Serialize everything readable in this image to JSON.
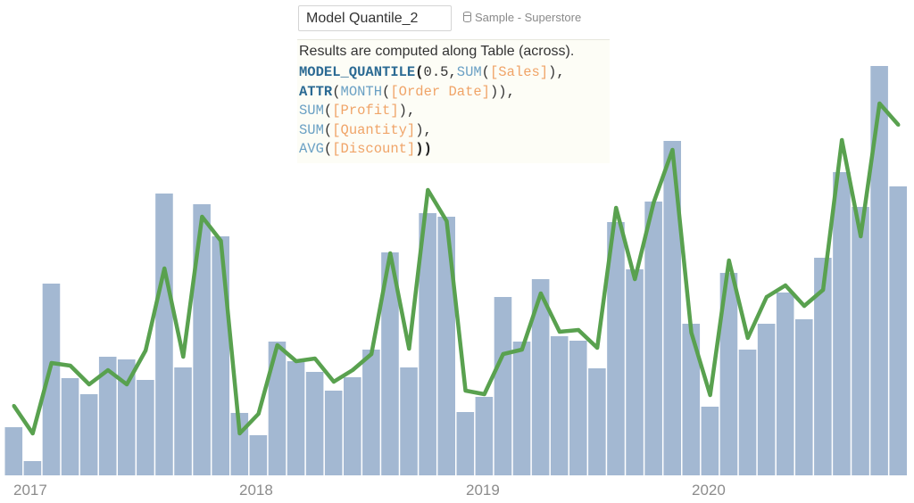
{
  "editor": {
    "calc_name": "Model Quantile_2",
    "datasource": "Sample - Superstore",
    "datasource_icon": "database-icon",
    "note": "Results are computed along Table (across).",
    "code_lines": [
      [
        [
          "fn",
          "MODEL_QUANTILE"
        ],
        [
          "punc-b",
          "("
        ],
        [
          "punc",
          "0.5,"
        ],
        [
          "agg",
          "SUM"
        ],
        [
          "punc",
          "("
        ],
        [
          "field",
          "[Sales]"
        ],
        [
          "punc",
          "),"
        ]
      ],
      [
        [
          "fn",
          "ATTR"
        ],
        [
          "punc",
          "("
        ],
        [
          "agg",
          "MONTH"
        ],
        [
          "punc",
          "("
        ],
        [
          "field",
          "[Order Date]"
        ],
        [
          "punc",
          "))"
        ],
        [
          "punc",
          ","
        ]
      ],
      [
        [
          "agg",
          "SUM"
        ],
        [
          "punc",
          "("
        ],
        [
          "field",
          "[Profit]"
        ],
        [
          "punc",
          "),"
        ]
      ],
      [
        [
          "agg",
          "SUM"
        ],
        [
          "punc",
          "("
        ],
        [
          "field",
          "[Quantity]"
        ],
        [
          "punc",
          "),"
        ]
      ],
      [
        [
          "agg",
          "AVG"
        ],
        [
          "punc",
          "("
        ],
        [
          "field",
          "[Discount]"
        ],
        [
          "punc-b",
          "))"
        ]
      ]
    ]
  },
  "colors": {
    "bar": "#a3b8d2",
    "line": "#59a14f",
    "axis_text": "#8c8c8c"
  },
  "chart_data": {
    "type": "bar+line",
    "x_axis_labels": [
      "2017",
      "2018",
      "2019",
      "2020"
    ],
    "categories": [
      "2017-01",
      "2017-02",
      "2017-03",
      "2017-04",
      "2017-05",
      "2017-06",
      "2017-07",
      "2017-08",
      "2017-09",
      "2017-10",
      "2017-11",
      "2017-12",
      "2018-01",
      "2018-02",
      "2018-03",
      "2018-04",
      "2018-05",
      "2018-06",
      "2018-07",
      "2018-08",
      "2018-09",
      "2018-10",
      "2018-11",
      "2018-12",
      "2019-01",
      "2019-02",
      "2019-03",
      "2019-04",
      "2019-05",
      "2019-06",
      "2019-07",
      "2019-08",
      "2019-09",
      "2019-10",
      "2019-11",
      "2019-12",
      "2020-01",
      "2020-02",
      "2020-03",
      "2020-04",
      "2020-05",
      "2020-06",
      "2020-07",
      "2020-08",
      "2020-09",
      "2020-10",
      "2020-11",
      "2020-12"
    ],
    "series": [
      {
        "mark": "bar",
        "values": [
          54,
          16,
          215,
          109,
          91,
          133,
          130,
          107,
          316,
          121,
          304,
          268,
          70,
          45,
          150,
          128,
          116,
          95,
          110,
          141,
          250,
          121,
          294,
          290,
          71,
          88,
          200,
          150,
          220,
          156,
          151,
          120,
          284,
          231,
          307,
          375,
          170,
          77,
          227,
          141,
          170,
          205,
          175,
          244,
          340,
          301,
          459,
          324
        ]
      },
      {
        "mark": "line",
        "values": [
          78,
          47,
          126,
          123,
          102,
          118,
          102,
          140,
          232,
          133,
          290,
          263,
          47,
          69,
          146,
          128,
          131,
          105,
          118,
          136,
          249,
          142,
          320,
          285,
          95,
          91,
          136,
          141,
          204,
          161,
          163,
          143,
          300,
          220,
          306,
          365,
          160,
          90,
          241,
          154,
          200,
          213,
          190,
          208,
          376,
          268,
          417,
          393
        ]
      }
    ],
    "ylim": [
      0,
      470
    ],
    "y_axis_shown": false,
    "grid": false
  }
}
